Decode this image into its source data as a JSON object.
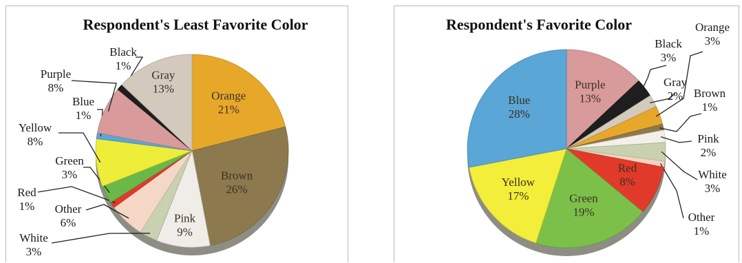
{
  "chart_data": [
    {
      "type": "pie",
      "title": "Respondent's  Least Favorite Color",
      "slices": [
        {
          "name": "Orange",
          "value": 21,
          "label": "21%",
          "color": "#e7a82a"
        },
        {
          "name": "Brown",
          "value": 26,
          "label": "26%",
          "color": "#8c7a4e"
        },
        {
          "name": "Pink",
          "value": 9,
          "label": "9%",
          "color": "#f0ece8"
        },
        {
          "name": "White",
          "value": 3,
          "label": "3%",
          "color": "#c9d1b1"
        },
        {
          "name": "Other",
          "value": 6,
          "label": "6%",
          "color": "#f4d8c5"
        },
        {
          "name": "Red",
          "value": 1,
          "label": "1%",
          "color": "#e23a2a"
        },
        {
          "name": "Green",
          "value": 3,
          "label": "3%",
          "color": "#6ab84a"
        },
        {
          "name": "Yellow",
          "value": 8,
          "label": "8%",
          "color": "#eded3a"
        },
        {
          "name": "Blue",
          "value": 1,
          "label": "1%",
          "color": "#5aa6d6"
        },
        {
          "name": "Purple",
          "value": 8,
          "label": "8%",
          "color": "#d89a9a"
        },
        {
          "name": "Black",
          "value": 1,
          "label": "1%",
          "color": "#1e1e1e"
        },
        {
          "name": "Gray",
          "value": 13,
          "label": "13%",
          "color": "#d3c9bd"
        }
      ]
    },
    {
      "type": "pie",
      "title": "Respondent's Favorite Color",
      "slices": [
        {
          "name": "Purple",
          "value": 13,
          "label": "13%",
          "color": "#d89a9a"
        },
        {
          "name": "Black",
          "value": 3,
          "label": "3%",
          "color": "#1e1e1e"
        },
        {
          "name": "Gray",
          "value": 2,
          "label": "2%",
          "color": "#d3c9bd"
        },
        {
          "name": "Orange",
          "value": 3,
          "label": "3%",
          "color": "#e7a82a"
        },
        {
          "name": "Brown",
          "value": 1,
          "label": "1%",
          "color": "#8c7a4e"
        },
        {
          "name": "Pink",
          "value": 2,
          "label": "2%",
          "color": "#f4efe9"
        },
        {
          "name": "White",
          "value": 3,
          "label": "3%",
          "color": "#c9d1b1"
        },
        {
          "name": "Other",
          "value": 1,
          "label": "1%",
          "color": "#f2d4c2"
        },
        {
          "name": "Red",
          "value": 8,
          "label": "8%",
          "color": "#e23a2a"
        },
        {
          "name": "Green",
          "value": 19,
          "label": "19%",
          "color": "#7cc04a"
        },
        {
          "name": "Yellow",
          "value": 17,
          "label": "17%",
          "color": "#f2ee3a"
        },
        {
          "name": "Blue",
          "value": 28,
          "label": "28%",
          "color": "#5aa6d6"
        }
      ]
    }
  ]
}
